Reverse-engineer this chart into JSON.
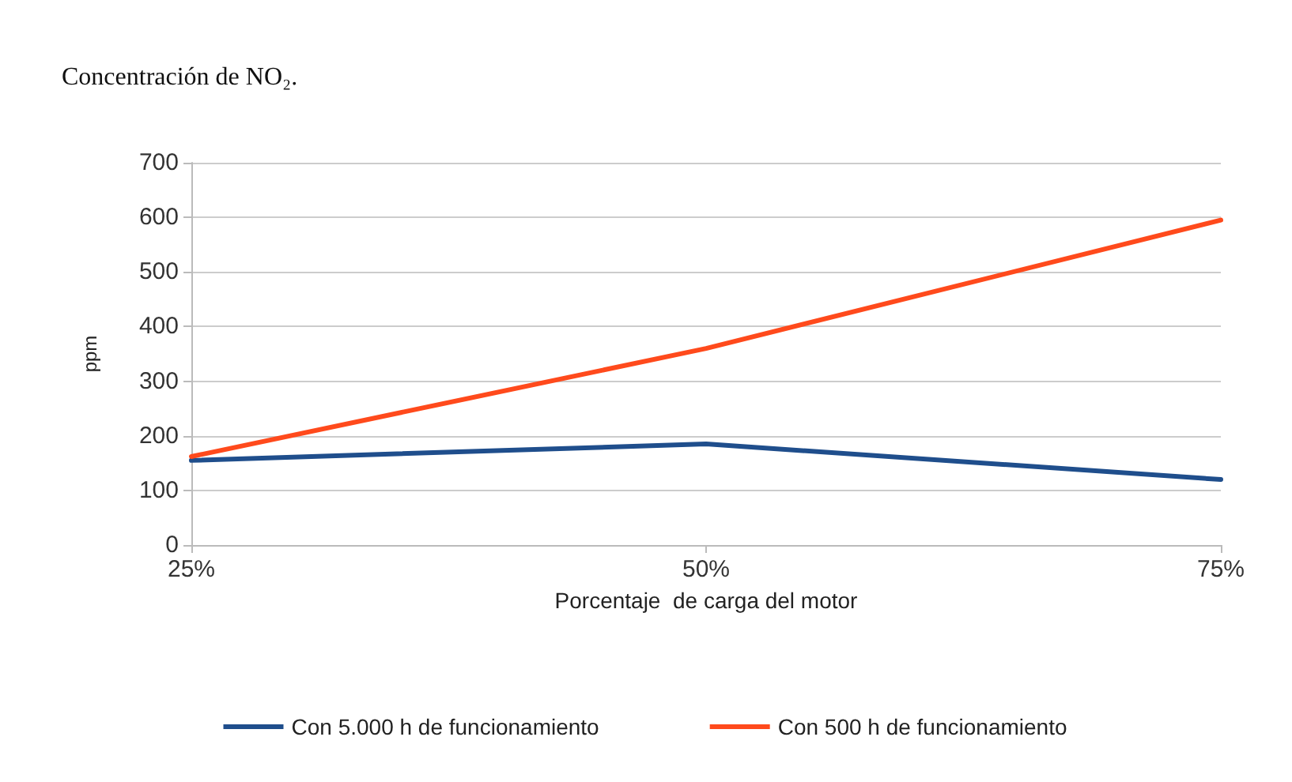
{
  "chart_data": {
    "type": "line",
    "title": "Concentración de NO₂.",
    "xlabel": "Porcentaje  de carga del motor",
    "ylabel": "ppm",
    "categories": [
      "25%",
      "50%",
      "75%"
    ],
    "series": [
      {
        "name": "Con 5.000 h de funcionamiento",
        "color": "#1f4e8c",
        "values": [
          155,
          185,
          120
        ]
      },
      {
        "name": "Con 500 h de funcionamiento",
        "color": "#ff4a1c",
        "values": [
          162,
          360,
          595
        ]
      }
    ],
    "ylim": [
      0,
      700
    ],
    "yticks": [
      0,
      100,
      200,
      300,
      400,
      500,
      600,
      700
    ],
    "grid": "y",
    "legend": "bottom",
    "marker": "none",
    "line_style": "solid"
  }
}
